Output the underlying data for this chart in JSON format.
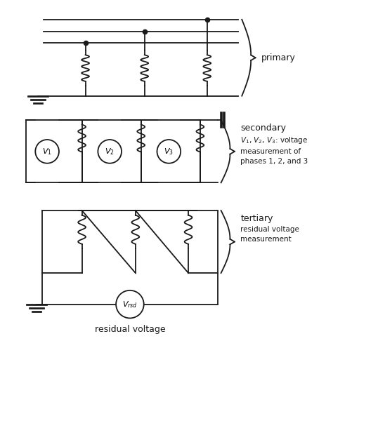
{
  "bg_color": "#ffffff",
  "line_color": "#1a1a1a",
  "line_width": 1.3,
  "fig_width": 5.48,
  "fig_height": 6.0,
  "labels": {
    "primary": "primary",
    "secondary": "secondary",
    "secondary_sub": "$V_1$, $V_2$, $V_3$: voltage\nmeasurement of\nphases 1, 2, and 3",
    "tertiary": "tertiary",
    "tertiary_sub": "residual voltage\nmeasurement",
    "residual": "residual voltage"
  }
}
